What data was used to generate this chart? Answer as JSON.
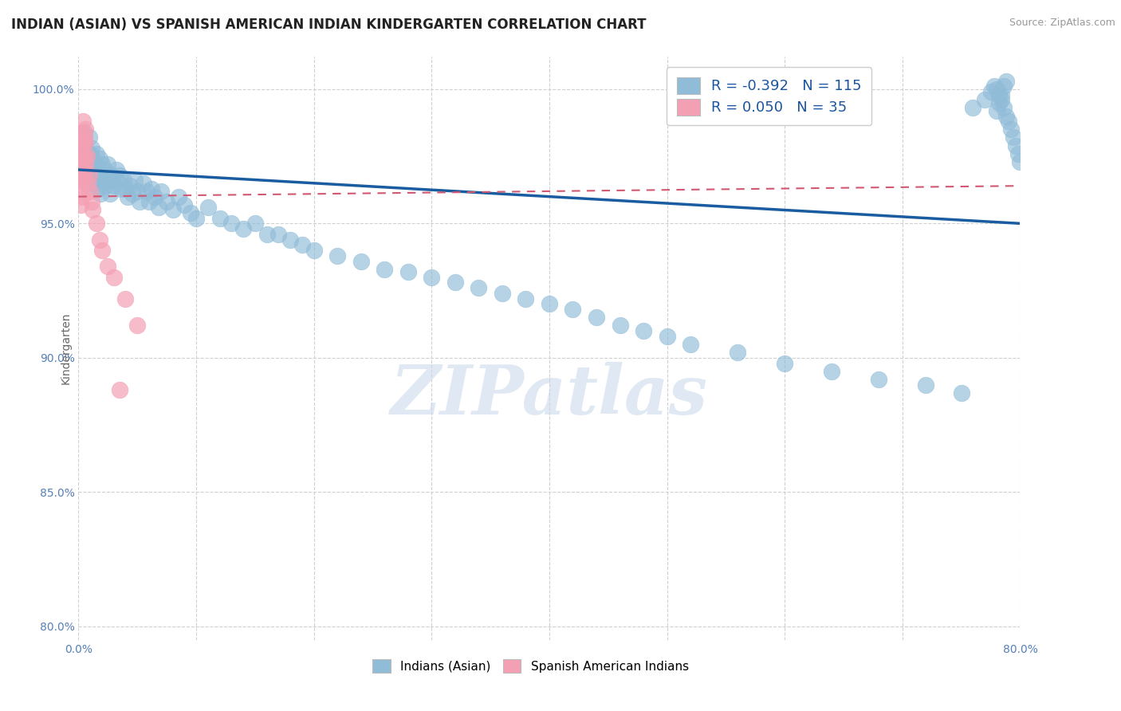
{
  "title": "INDIAN (ASIAN) VS SPANISH AMERICAN INDIAN KINDERGARTEN CORRELATION CHART",
  "source": "Source: ZipAtlas.com",
  "ylabel": "Kindergarten",
  "xlim": [
    0.0,
    0.8
  ],
  "ylim": [
    0.795,
    1.012
  ],
  "yticks": [
    0.8,
    0.85,
    0.9,
    0.95,
    1.0
  ],
  "ytick_labels": [
    "80.0%",
    "85.0%",
    "90.0%",
    "95.0%",
    "100.0%"
  ],
  "xtick_vals": [
    0.0,
    0.1,
    0.2,
    0.3,
    0.4,
    0.5,
    0.6,
    0.7,
    0.8
  ],
  "xtick_labels": [
    "0.0%",
    "",
    "",
    "",
    "",
    "",
    "",
    "",
    "80.0%"
  ],
  "legend_blue_label": "Indians (Asian)",
  "legend_pink_label": "Spanish American Indians",
  "R_blue": -0.392,
  "N_blue": 115,
  "R_pink": 0.05,
  "N_pink": 35,
  "blue_color": "#90bcd8",
  "pink_color": "#f4a0b4",
  "blue_line_color": "#1a5ca0",
  "pink_line_color": "#d05870",
  "watermark": "ZIPatlas",
  "title_fontsize": 12,
  "axis_label_fontsize": 10,
  "tick_fontsize": 10,
  "source_fontsize": 9,
  "blue_scatter_x": [
    0.002,
    0.003,
    0.003,
    0.004,
    0.004,
    0.005,
    0.005,
    0.006,
    0.006,
    0.007,
    0.007,
    0.008,
    0.008,
    0.009,
    0.01,
    0.01,
    0.011,
    0.012,
    0.012,
    0.013,
    0.014,
    0.015,
    0.015,
    0.016,
    0.017,
    0.018,
    0.018,
    0.019,
    0.02,
    0.02,
    0.022,
    0.023,
    0.024,
    0.025,
    0.026,
    0.027,
    0.028,
    0.03,
    0.032,
    0.033,
    0.035,
    0.036,
    0.038,
    0.04,
    0.042,
    0.044,
    0.046,
    0.048,
    0.05,
    0.052,
    0.055,
    0.058,
    0.06,
    0.062,
    0.065,
    0.068,
    0.07,
    0.075,
    0.08,
    0.085,
    0.09,
    0.095,
    0.1,
    0.11,
    0.12,
    0.13,
    0.14,
    0.15,
    0.16,
    0.17,
    0.18,
    0.19,
    0.2,
    0.22,
    0.24,
    0.26,
    0.28,
    0.3,
    0.32,
    0.34,
    0.36,
    0.38,
    0.4,
    0.42,
    0.44,
    0.46,
    0.48,
    0.5,
    0.52,
    0.56,
    0.6,
    0.64,
    0.68,
    0.72,
    0.75,
    0.76,
    0.77,
    0.775,
    0.778,
    0.78,
    0.782,
    0.784,
    0.786,
    0.788,
    0.79,
    0.792,
    0.794,
    0.796,
    0.798,
    0.8,
    0.78,
    0.782,
    0.784,
    0.786,
    0.788
  ],
  "blue_scatter_y": [
    0.981,
    0.976,
    0.979,
    0.974,
    0.983,
    0.979,
    0.984,
    0.972,
    0.977,
    0.968,
    0.974,
    0.969,
    0.976,
    0.982,
    0.976,
    0.971,
    0.978,
    0.974,
    0.965,
    0.969,
    0.972,
    0.976,
    0.968,
    0.963,
    0.97,
    0.974,
    0.967,
    0.961,
    0.972,
    0.966,
    0.97,
    0.964,
    0.968,
    0.972,
    0.966,
    0.961,
    0.968,
    0.964,
    0.97,
    0.966,
    0.968,
    0.963,
    0.966,
    0.963,
    0.96,
    0.964,
    0.961,
    0.966,
    0.962,
    0.958,
    0.965,
    0.962,
    0.958,
    0.963,
    0.96,
    0.956,
    0.962,
    0.958,
    0.955,
    0.96,
    0.957,
    0.954,
    0.952,
    0.956,
    0.952,
    0.95,
    0.948,
    0.95,
    0.946,
    0.946,
    0.944,
    0.942,
    0.94,
    0.938,
    0.936,
    0.933,
    0.932,
    0.93,
    0.928,
    0.926,
    0.924,
    0.922,
    0.92,
    0.918,
    0.915,
    0.912,
    0.91,
    0.908,
    0.905,
    0.902,
    0.898,
    0.895,
    0.892,
    0.89,
    0.887,
    0.993,
    0.996,
    0.999,
    1.001,
    1.0,
    0.998,
    0.996,
    0.993,
    0.99,
    0.988,
    0.985,
    0.982,
    0.979,
    0.976,
    0.973,
    0.992,
    0.995,
    0.998,
    1.001,
    1.003
  ],
  "pink_scatter_x": [
    0.001,
    0.001,
    0.002,
    0.002,
    0.002,
    0.002,
    0.003,
    0.003,
    0.003,
    0.003,
    0.004,
    0.004,
    0.004,
    0.005,
    0.005,
    0.006,
    0.006,
    0.007,
    0.008,
    0.009,
    0.01,
    0.011,
    0.012,
    0.015,
    0.018,
    0.02,
    0.025,
    0.03,
    0.035,
    0.04,
    0.05,
    0.003,
    0.004,
    0.005,
    0.006
  ],
  "pink_scatter_y": [
    0.97,
    0.966,
    0.974,
    0.968,
    0.962,
    0.957,
    0.978,
    0.972,
    0.966,
    0.96,
    0.98,
    0.975,
    0.968,
    0.975,
    0.97,
    0.98,
    0.972,
    0.975,
    0.965,
    0.968,
    0.962,
    0.958,
    0.955,
    0.95,
    0.944,
    0.94,
    0.934,
    0.93,
    0.888,
    0.922,
    0.912,
    0.984,
    0.988,
    0.982,
    0.985
  ],
  "blue_trendline_x": [
    0.0,
    0.8
  ],
  "blue_trendline_y": [
    0.97,
    0.95
  ],
  "pink_trendline_x": [
    0.0,
    0.8
  ],
  "pink_trendline_y": [
    0.96,
    0.964
  ]
}
